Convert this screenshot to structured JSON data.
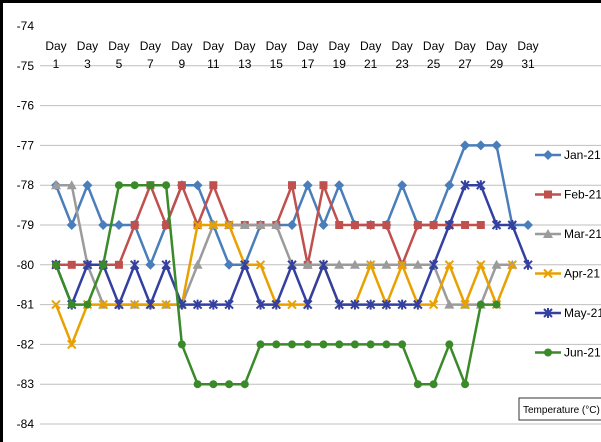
{
  "chart_data": {
    "type": "line",
    "x": [
      1,
      2,
      3,
      4,
      5,
      6,
      7,
      8,
      9,
      10,
      11,
      12,
      13,
      14,
      15,
      16,
      17,
      18,
      19,
      20,
      21,
      22,
      23,
      24,
      25,
      26,
      27,
      28,
      29,
      30,
      31
    ],
    "x_tick_values": [
      1,
      3,
      5,
      7,
      9,
      11,
      13,
      15,
      17,
      19,
      21,
      23,
      25,
      27,
      29,
      31
    ],
    "x_tick_labels_top": [
      "Day",
      "Day",
      "Day",
      "Day",
      "Day",
      "Day",
      "Day",
      "Day",
      "Day",
      "Day",
      "Day",
      "Day",
      "Day",
      "Day",
      "Day",
      "Day"
    ],
    "x_tick_labels_bottom": [
      "1",
      "3",
      "5",
      "7",
      "9",
      "11",
      "13",
      "15",
      "17",
      "19",
      "21",
      "23",
      "25",
      "27",
      "29",
      "31"
    ],
    "y_ticks": [
      -74,
      -75,
      -76,
      -77,
      -78,
      -79,
      -80,
      -81,
      -82,
      -83,
      -84
    ],
    "ylim": [
      -84,
      -74
    ],
    "xlim": [
      1,
      31
    ],
    "grid": true,
    "legend_position": "right",
    "axis_title": "Temperature (°C)",
    "series": [
      {
        "name": "Jan-21",
        "color": "#4a7ebb",
        "marker": "diamond",
        "values": [
          -78,
          -79,
          -78,
          -79,
          -79,
          -79,
          -80,
          -79,
          -78,
          -78,
          -79,
          -80,
          -80,
          -79,
          -79,
          -79,
          -78,
          -79,
          -78,
          -79,
          -79,
          -79,
          -78,
          -79,
          -79,
          -78,
          -77,
          -77,
          -77,
          -79,
          -79
        ]
      },
      {
        "name": "Feb-21",
        "color": "#c0504d",
        "marker": "square",
        "values": [
          -80,
          -80,
          -80,
          -80,
          -80,
          -79,
          -78,
          -79,
          -78,
          -79,
          -78,
          -79,
          -79,
          -79,
          -79,
          -78,
          -80,
          -78,
          -79,
          -79,
          -79,
          -79,
          -80,
          -79,
          -79,
          -79,
          -79,
          -79,
          null,
          null,
          null
        ]
      },
      {
        "name": "Mar-21",
        "color": "#9b9b9b",
        "marker": "triangle",
        "values": [
          -78,
          -78,
          -80,
          -81,
          -81,
          -81,
          -81,
          -81,
          -81,
          -80,
          -79,
          -79,
          -79,
          -79,
          -79,
          -80,
          -80,
          -80,
          -80,
          -80,
          -80,
          -80,
          -80,
          -80,
          -80,
          -81,
          -81,
          -81,
          -80,
          -80,
          null
        ]
      },
      {
        "name": "Apr-21",
        "color": "#e8a100",
        "marker": "x",
        "values": [
          -81,
          -82,
          -81,
          -81,
          -81,
          -81,
          -81,
          -81,
          -81,
          -79,
          -79,
          -79,
          -80,
          -80,
          -81,
          -81,
          -81,
          -80,
          -81,
          -81,
          -80,
          -81,
          -80,
          -81,
          -81,
          -80,
          -81,
          -80,
          -81,
          -80,
          null
        ]
      },
      {
        "name": "May-21",
        "color": "#3340a0",
        "marker": "star",
        "values": [
          -80,
          -81,
          -80,
          -80,
          -81,
          -80,
          -81,
          -80,
          -81,
          -81,
          -81,
          -81,
          -80,
          -81,
          -81,
          -80,
          -81,
          -80,
          -81,
          -81,
          -81,
          -81,
          -81,
          -81,
          -80,
          -79,
          -78,
          -78,
          -79,
          -79,
          -80
        ]
      },
      {
        "name": "Jun-21",
        "color": "#3a8a2a",
        "marker": "circle",
        "values": [
          -80,
          -81,
          -81,
          -80,
          -78,
          -78,
          -78,
          -78,
          -82,
          -83,
          -83,
          -83,
          -83,
          -82,
          -82,
          -82,
          -82,
          -82,
          -82,
          -82,
          -82,
          -82,
          -82,
          -83,
          -83,
          -82,
          -83,
          -81,
          -81,
          null,
          null
        ]
      }
    ]
  }
}
